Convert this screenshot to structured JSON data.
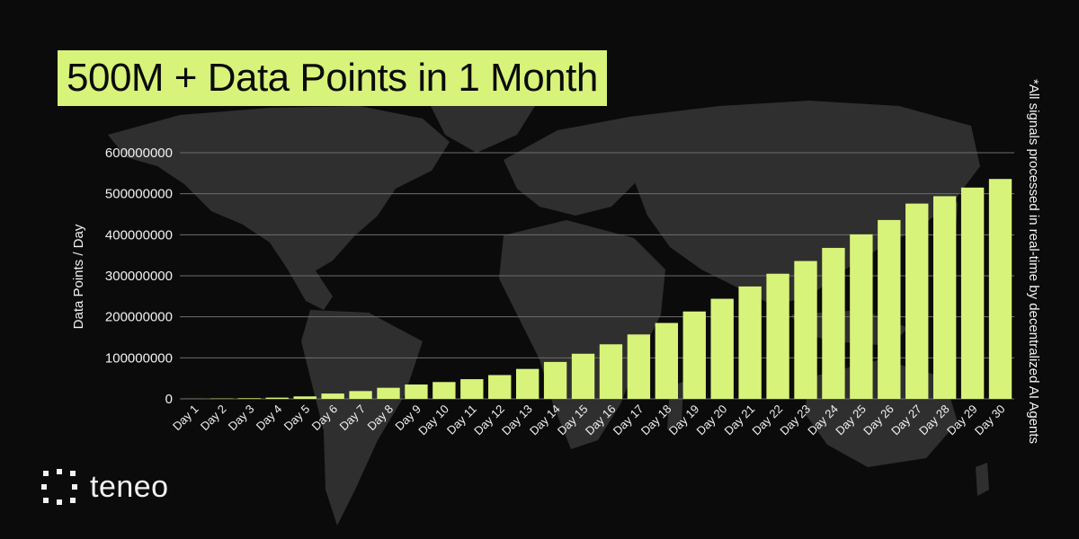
{
  "title": "500M + Data Points in 1 Month",
  "side_note": "*All signals processed in real-time by decentralized AI Agents",
  "brand": {
    "name": "teneo",
    "logo_icon": "teneo-dots-icon",
    "accent": "#d8f37a"
  },
  "colors": {
    "background": "#0b0b0b",
    "bar": "#d8f37a",
    "map": "#2f2f2f",
    "text": "#f2f2f2",
    "grid": "#6e6e6e"
  },
  "chart_data": {
    "type": "bar",
    "title": "500M + Data Points in 1 Month",
    "xlabel": "",
    "ylabel": "Data Points / Day",
    "ylim": [
      0,
      600000000
    ],
    "yticks": [
      0,
      100000000,
      200000000,
      300000000,
      400000000,
      500000000,
      600000000
    ],
    "ytick_labels": [
      "0",
      "100000000",
      "200000000",
      "300000000",
      "400000000",
      "500000000",
      "600000000"
    ],
    "grid": true,
    "legend": "none",
    "categories": [
      "Day 1",
      "Day 2",
      "Day 3",
      "Day 4",
      "Day 5",
      "Day 6",
      "Day 7",
      "Day 8",
      "Day 9",
      "Day 10",
      "Day 11",
      "Day 12",
      "Day 13",
      "Day 14",
      "Day 15",
      "Day 16",
      "Day 17",
      "Day 18",
      "Day 19",
      "Day 20",
      "Day 21",
      "Day 22",
      "Day 23",
      "Day 24",
      "Day 25",
      "Day 26",
      "Day 27",
      "Day 28",
      "Day 29",
      "Day 30"
    ],
    "values": [
      200000,
      800000,
      1500000,
      3000000,
      6000000,
      13000000,
      19000000,
      27000000,
      35000000,
      41000000,
      48000000,
      58000000,
      73000000,
      90000000,
      110000000,
      133000000,
      157000000,
      185000000,
      213000000,
      244000000,
      274000000,
      305000000,
      336000000,
      368000000,
      401000000,
      436000000,
      476000000,
      494000000,
      515000000,
      536000000
    ]
  }
}
